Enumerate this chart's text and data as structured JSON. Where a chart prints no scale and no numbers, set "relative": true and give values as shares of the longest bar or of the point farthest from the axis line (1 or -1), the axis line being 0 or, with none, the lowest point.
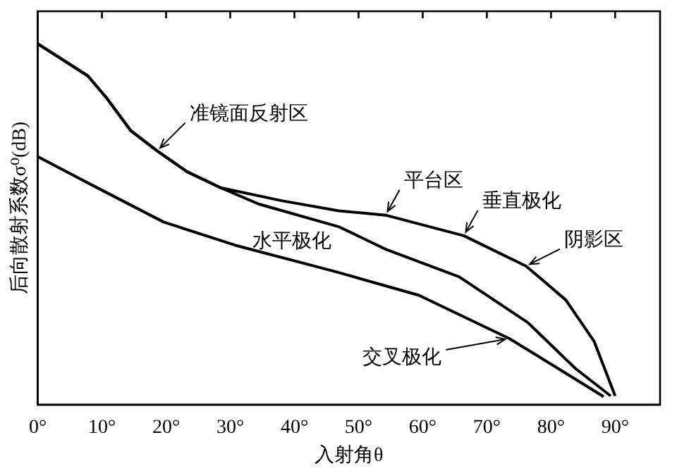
{
  "chart_data": {
    "type": "line",
    "relative": true,
    "xlabel": "入射角θ",
    "ylabel": "后向散射系数σ⁰(dB)",
    "xlim": [
      0,
      97
    ],
    "xticks": [
      {
        "value": 0,
        "label": "0°"
      },
      {
        "value": 10,
        "label": "10°"
      },
      {
        "value": 20,
        "label": "20°"
      },
      {
        "value": 30,
        "label": "30°"
      },
      {
        "value": 40,
        "label": "40°"
      },
      {
        "value": 50,
        "label": "50°"
      },
      {
        "value": 60,
        "label": "60°"
      },
      {
        "value": 70,
        "label": "70°"
      },
      {
        "value": 80,
        "label": "80°"
      },
      {
        "value": 90,
        "label": "90°"
      }
    ],
    "series": [
      {
        "name": "垂直极化",
        "color": "#000000",
        "x": [
          0,
          7.8,
          10.8,
          14.5,
          18.6,
          23.3,
          28.5,
          38,
          46.9,
          54.2,
          66.4,
          76.1,
          82.3,
          86.7,
          90
        ],
        "values": [
          1.0,
          0.911,
          0.848,
          0.759,
          0.703,
          0.645,
          0.601,
          0.565,
          0.537,
          0.525,
          0.468,
          0.384,
          0.29,
          0.176,
          0.024
        ]
      },
      {
        "name": "水平极化",
        "color": "#000000",
        "x": [
          0,
          7.8,
          10.8,
          14.5,
          18.6,
          23.3,
          28.5,
          34.4,
          46.9,
          54.3,
          65.7,
          76.4,
          83.8,
          89.3
        ],
        "values": [
          1.0,
          0.911,
          0.848,
          0.759,
          0.703,
          0.645,
          0.601,
          0.556,
          0.493,
          0.43,
          0.354,
          0.227,
          0.1,
          0.024
        ]
      },
      {
        "name": "交叉极化",
        "color": "#000000",
        "x": [
          0,
          8.6,
          19.6,
          30.7,
          46.9,
          59.4,
          73.5,
          82.3,
          88.2
        ],
        "values": [
          0.687,
          0.607,
          0.506,
          0.442,
          0.366,
          0.303,
          0.183,
          0.087,
          0.022
        ]
      }
    ],
    "annotations": [
      {
        "text": "准镜面反射区",
        "x": 18.6,
        "y": 0.703
      },
      {
        "text": "平台区",
        "x": 54.2,
        "y": 0.525
      },
      {
        "text": "阴影区",
        "x": 76.1,
        "y": 0.384
      }
    ],
    "marker": "none",
    "line_style": "solid",
    "legend": false,
    "grid": false
  }
}
